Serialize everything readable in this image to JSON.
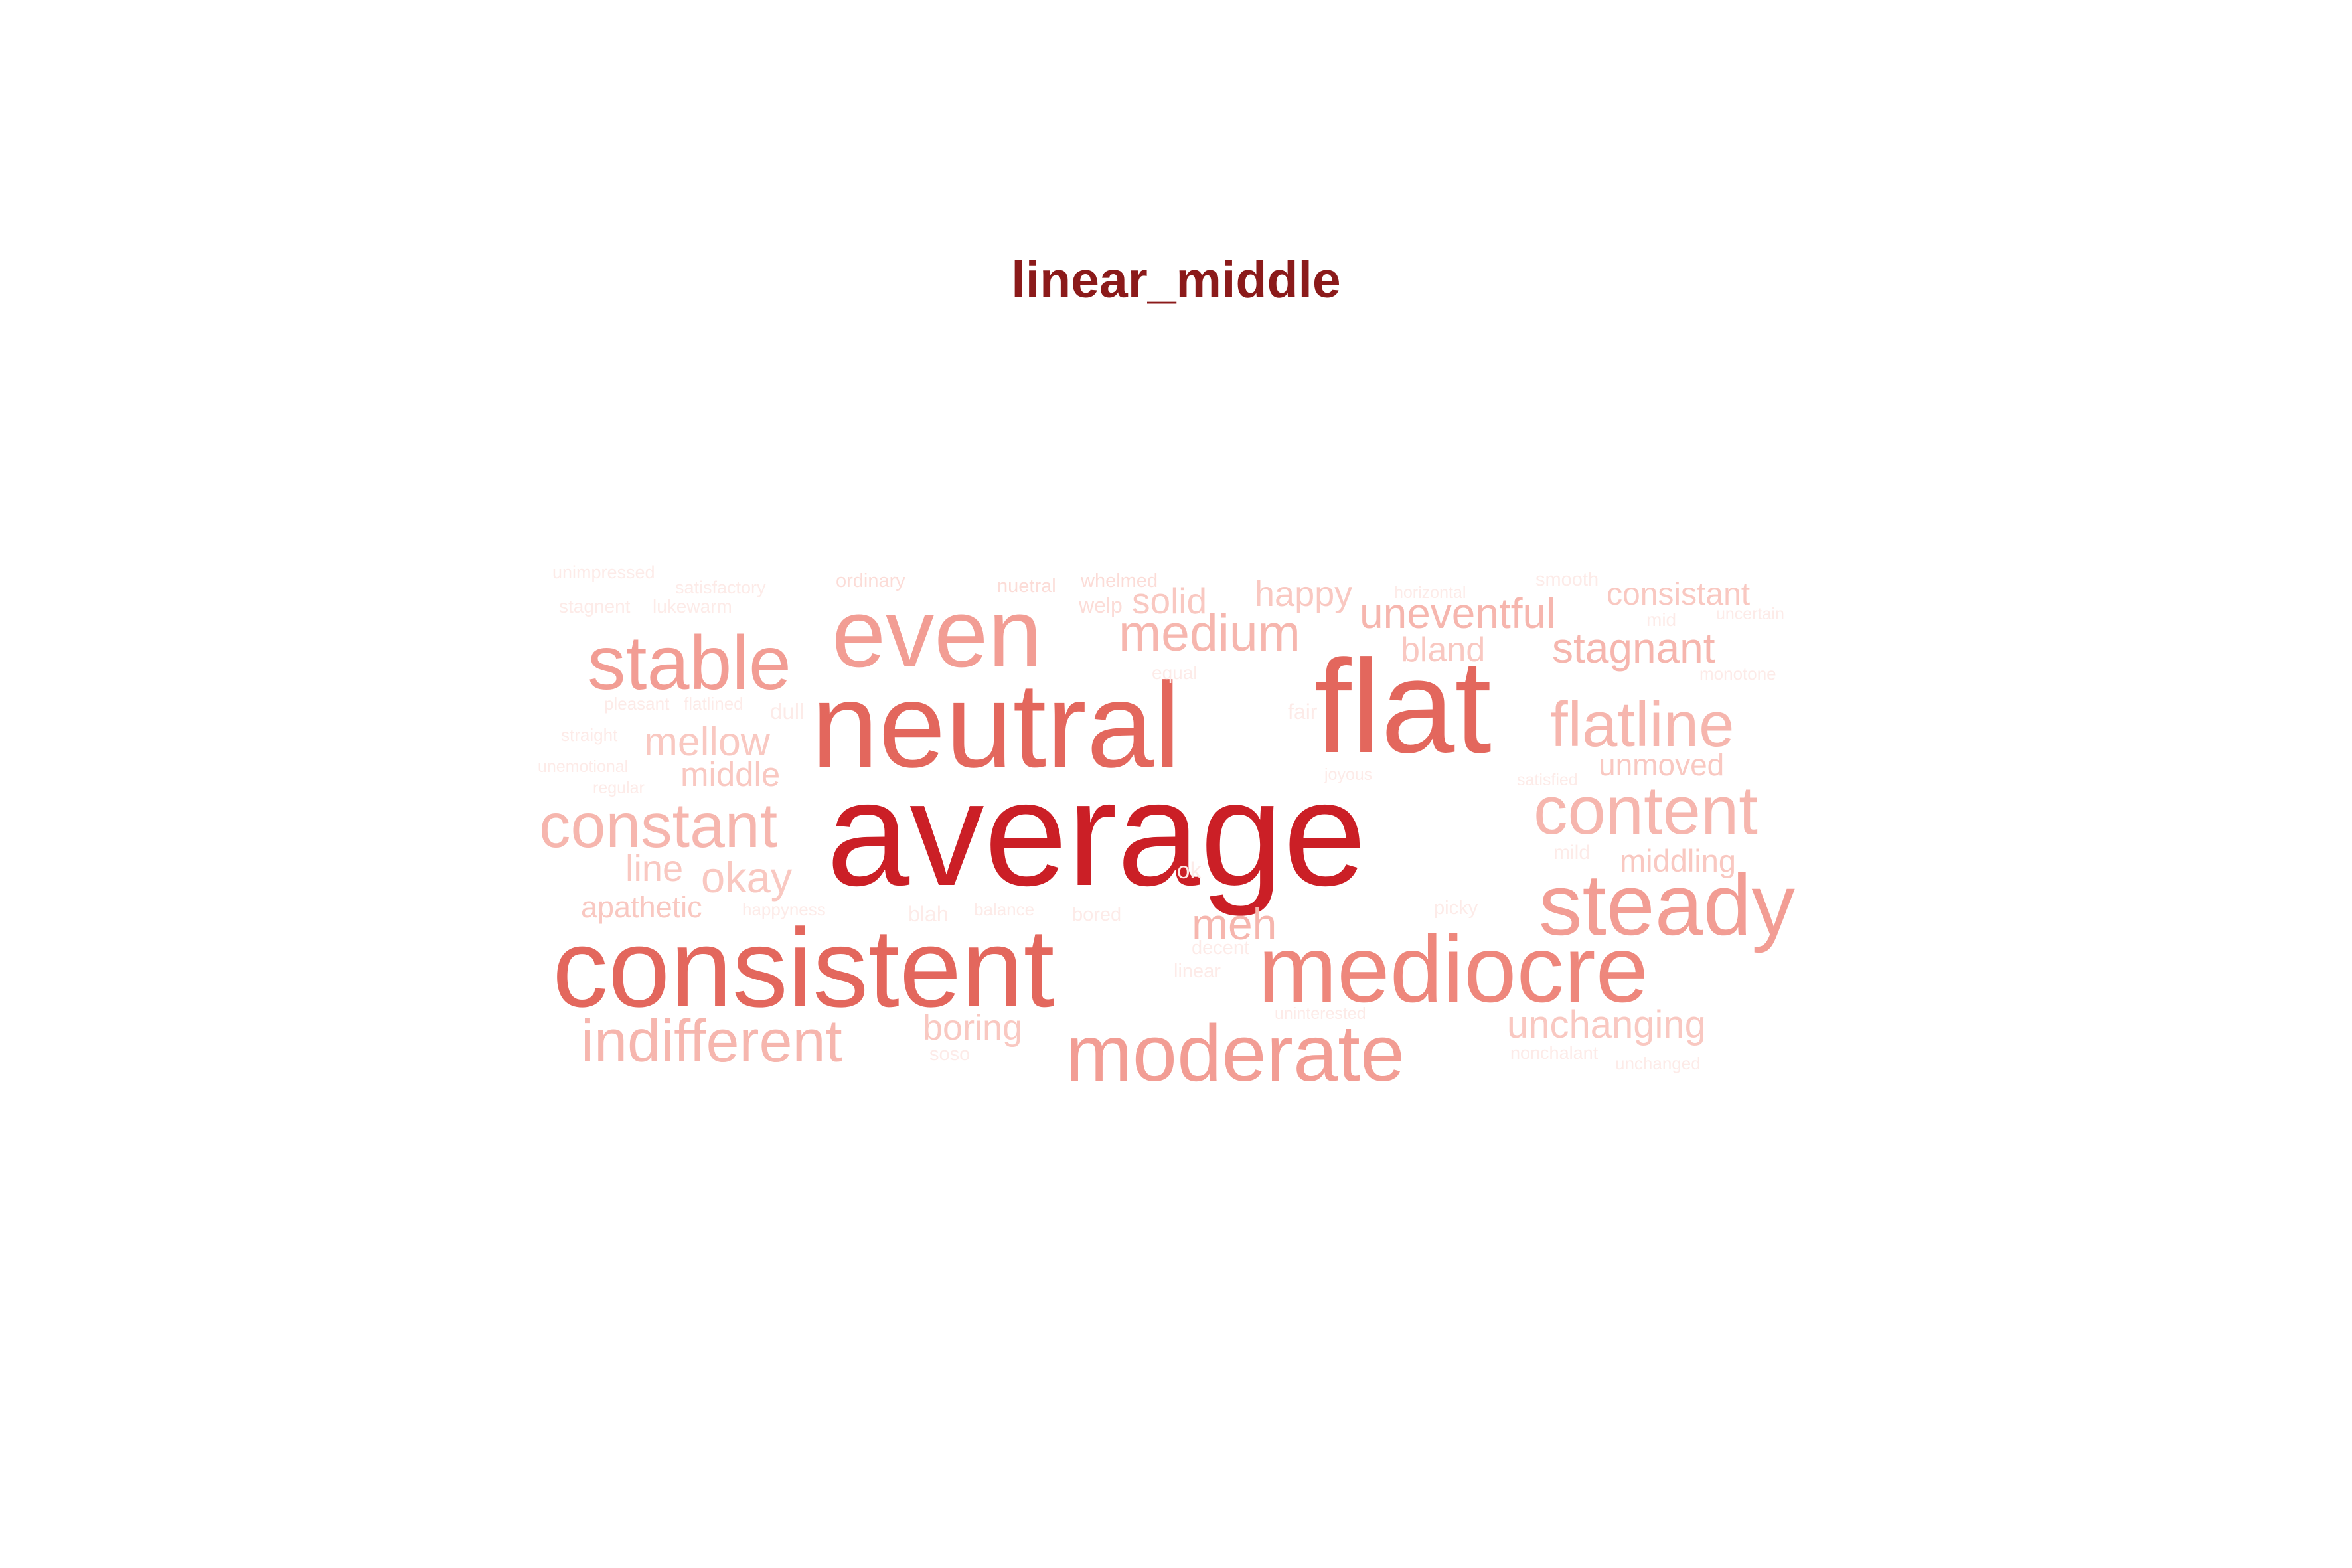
{
  "title": "linear_middle",
  "colors": {
    "title": "#8b1a1a",
    "level_1": "#cb1f26",
    "level_2": "#e3675d",
    "level_3": "#ee877c",
    "level_4": "#f29d94",
    "level_5": "#f6b6ae",
    "level_6": "#f9c8c1",
    "level_7": "#fcdcd7",
    "level_8": "#fdebe8"
  },
  "words": [
    {
      "text": "average",
      "level": 1
    },
    {
      "text": "flat",
      "level": 2
    },
    {
      "text": "neutral",
      "level": 2
    },
    {
      "text": "consistent",
      "level": 2
    },
    {
      "text": "mediocre",
      "level": 3
    },
    {
      "text": "even",
      "level": 4
    },
    {
      "text": "steady",
      "level": 4
    },
    {
      "text": "moderate",
      "level": 4
    },
    {
      "text": "stable",
      "level": 4
    },
    {
      "text": "constant",
      "level": 5
    },
    {
      "text": "content",
      "level": 5
    },
    {
      "text": "flatline",
      "level": 5
    },
    {
      "text": "indifferent",
      "level": 5
    },
    {
      "text": "medium",
      "level": 5
    },
    {
      "text": "stagnant",
      "level": 5
    },
    {
      "text": "uneventful",
      "level": 5
    },
    {
      "text": "meh",
      "level": 5
    },
    {
      "text": "mellow",
      "level": 6
    },
    {
      "text": "okay",
      "level": 6
    },
    {
      "text": "unchanging",
      "level": 6
    },
    {
      "text": "boring",
      "level": 6
    },
    {
      "text": "middle",
      "level": 6
    },
    {
      "text": "line",
      "level": 6
    },
    {
      "text": "happy",
      "level": 6
    },
    {
      "text": "solid",
      "level": 6
    },
    {
      "text": "consistant",
      "level": 6
    },
    {
      "text": "bland",
      "level": 6
    },
    {
      "text": "unmoved",
      "level": 6
    },
    {
      "text": "middling",
      "level": 6
    },
    {
      "text": "apathetic",
      "level": 6
    },
    {
      "text": "unimpressed",
      "level": 8
    },
    {
      "text": "satisfactory",
      "level": 8
    },
    {
      "text": "ordinary",
      "level": 7
    },
    {
      "text": "nuetral",
      "level": 7
    },
    {
      "text": "whelmed",
      "level": 7
    },
    {
      "text": "horizontal",
      "level": 8
    },
    {
      "text": "smooth",
      "level": 8
    },
    {
      "text": "stagnent",
      "level": 8
    },
    {
      "text": "lukewarm",
      "level": 8
    },
    {
      "text": "welp",
      "level": 7
    },
    {
      "text": "mid",
      "level": 8
    },
    {
      "text": "uncertain",
      "level": 8
    },
    {
      "text": "equal",
      "level": 8
    },
    {
      "text": "monotone",
      "level": 8
    },
    {
      "text": "pleasant",
      "level": 8
    },
    {
      "text": "flatlined",
      "level": 8
    },
    {
      "text": "dull",
      "level": 8
    },
    {
      "text": "fair",
      "level": 8
    },
    {
      "text": "straight",
      "level": 8
    },
    {
      "text": "unemotional",
      "level": 8
    },
    {
      "text": "joyous",
      "level": 8
    },
    {
      "text": "satisfied",
      "level": 8
    },
    {
      "text": "regular",
      "level": 8
    },
    {
      "text": "mild",
      "level": 8
    },
    {
      "text": "ok",
      "level": 8
    },
    {
      "text": "happyness",
      "level": 8
    },
    {
      "text": "blah",
      "level": 8
    },
    {
      "text": "balance",
      "level": 8
    },
    {
      "text": "bored",
      "level": 8
    },
    {
      "text": "picky",
      "level": 8
    },
    {
      "text": "decent",
      "level": 8
    },
    {
      "text": "linear",
      "level": 8
    },
    {
      "text": "soso",
      "level": 8
    },
    {
      "text": "uninterested",
      "level": 8
    },
    {
      "text": "nonchalant",
      "level": 8
    },
    {
      "text": "unchanged",
      "level": 8
    }
  ]
}
